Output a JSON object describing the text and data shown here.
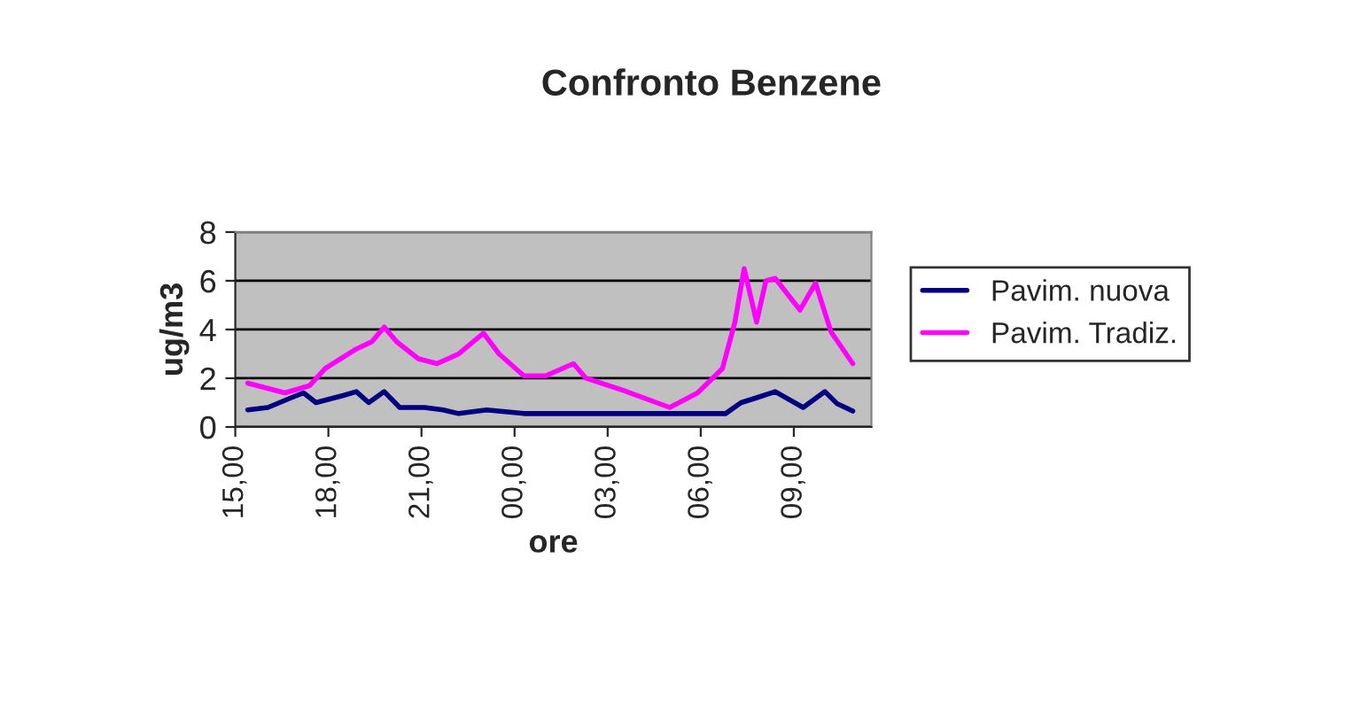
{
  "chart_data": {
    "type": "line",
    "title": "Confronto Benzene",
    "xlabel": "ore",
    "ylabel": "ug/m3",
    "xlim": [
      "2000-01-01T15:00",
      "2000-01-02T11:30"
    ],
    "xticks": [
      {
        "value": "2000-01-01T15:00",
        "label": "15,00"
      },
      {
        "value": "2000-01-01T18:00",
        "label": "18,00"
      },
      {
        "value": "2000-01-01T21:00",
        "label": "21,00"
      },
      {
        "value": "2000-01-02T00:00",
        "label": "00,00"
      },
      {
        "value": "2000-01-02T03:00",
        "label": "03,00"
      },
      {
        "value": "2000-01-02T06:00",
        "label": "06,00"
      },
      {
        "value": "2000-01-02T09:00",
        "label": "09,00"
      }
    ],
    "ylim": [
      0,
      8
    ],
    "yticks": [
      0,
      2,
      4,
      6,
      8
    ],
    "grid": "y",
    "legend": "right",
    "series": [
      {
        "name": "Pavim. nuova",
        "color": "#000080",
        "x": [
          "2000-01-01T15:24",
          "2000-01-01T16:03",
          "2000-01-01T16:48",
          "2000-01-01T17:12",
          "2000-01-01T17:36",
          "2000-01-01T18:30",
          "2000-01-01T18:54",
          "2000-01-01T19:18",
          "2000-01-01T19:48",
          "2000-01-01T20:18",
          "2000-01-01T21:06",
          "2000-01-01T21:42",
          "2000-01-01T22:12",
          "2000-01-01T23:06",
          "2000-01-02T00:18",
          "2000-01-02T02:00",
          "2000-01-02T04:48",
          "2000-01-02T06:48",
          "2000-01-02T07:18",
          "2000-01-02T07:48",
          "2000-01-02T08:24",
          "2000-01-02T09:18",
          "2000-01-02T10:00",
          "2000-01-02T10:24",
          "2000-01-02T10:54"
        ],
        "values": [
          0.7,
          0.8,
          1.2,
          1.4,
          1.0,
          1.3,
          1.45,
          1.0,
          1.45,
          0.8,
          0.8,
          0.7,
          0.55,
          0.7,
          0.55,
          0.55,
          0.55,
          0.55,
          1.0,
          1.2,
          1.45,
          0.8,
          1.45,
          0.95,
          0.65
        ]
      },
      {
        "name": "Pavim. Tradiz.",
        "color": "#ff00ff",
        "x": [
          "2000-01-01T15:24",
          "2000-01-01T16:36",
          "2000-01-01T17:24",
          "2000-01-01T17:54",
          "2000-01-01T18:54",
          "2000-01-01T19:24",
          "2000-01-01T19:48",
          "2000-01-01T20:12",
          "2000-01-01T20:54",
          "2000-01-01T21:30",
          "2000-01-01T22:12",
          "2000-01-01T23:00",
          "2000-01-01T23:30",
          "2000-01-02T00:18",
          "2000-01-02T01:00",
          "2000-01-02T01:54",
          "2000-01-02T02:18",
          "2000-01-02T03:30",
          "2000-01-02T05:00",
          "2000-01-02T05:54",
          "2000-01-02T06:42",
          "2000-01-02T07:06",
          "2000-01-02T07:24",
          "2000-01-02T07:48",
          "2000-01-02T08:06",
          "2000-01-02T08:24",
          "2000-01-02T09:12",
          "2000-01-02T09:42",
          "2000-01-02T10:12",
          "2000-01-02T10:54"
        ],
        "values": [
          1.8,
          1.4,
          1.7,
          2.4,
          3.2,
          3.5,
          4.1,
          3.5,
          2.8,
          2.6,
          3.0,
          3.85,
          3.0,
          2.1,
          2.1,
          2.6,
          2.0,
          1.5,
          0.8,
          1.4,
          2.4,
          4.3,
          6.5,
          4.3,
          6.0,
          6.1,
          4.8,
          5.9,
          3.9,
          2.6
        ]
      }
    ]
  }
}
